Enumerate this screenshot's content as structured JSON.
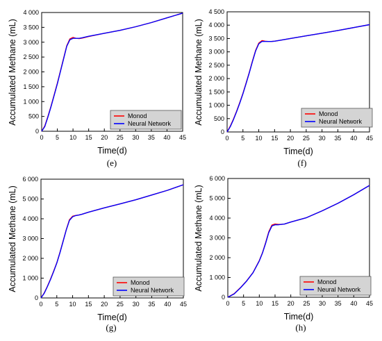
{
  "colors": {
    "monod": "#ff0000",
    "neural": "#0000ff",
    "legend_bg": "#d4d4d4"
  },
  "chart_data": [
    {
      "type": "line",
      "panel_label": "(e)",
      "xlabel": "Time(d)",
      "ylabel": "Accumulated Methane (mL)",
      "xlim": [
        0,
        45
      ],
      "ylim": [
        0,
        4000
      ],
      "xticks": [
        "0",
        "5",
        "10",
        "15",
        "20",
        "25",
        "30",
        "35",
        "40",
        "45"
      ],
      "yticks": [
        "0",
        "500",
        "1 000",
        "1 500",
        "2 000",
        "2 500",
        "3 000",
        "3 500",
        "4 000"
      ],
      "legend_position": "bottom-right",
      "x": [
        0,
        1,
        2,
        3,
        4,
        5,
        6,
        7,
        8,
        9,
        10,
        11,
        12,
        13,
        15,
        20,
        25,
        30,
        35,
        40,
        45
      ],
      "series": [
        {
          "name": "Monod",
          "values": [
            0,
            180,
            500,
            850,
            1230,
            1620,
            2040,
            2460,
            2880,
            3110,
            3160,
            3130,
            3120,
            3140,
            3190,
            3300,
            3400,
            3520,
            3660,
            3820,
            3980
          ]
        },
        {
          "name": "Neural Network",
          "values": [
            0,
            160,
            480,
            830,
            1210,
            1600,
            2020,
            2440,
            2860,
            3080,
            3130,
            3130,
            3130,
            3150,
            3200,
            3300,
            3400,
            3520,
            3660,
            3820,
            3980
          ]
        }
      ]
    },
    {
      "type": "line",
      "panel_label": "(f)",
      "xlabel": "Time(d)",
      "ylabel": "Accumulated Methane (mL)",
      "xlim": [
        0,
        45
      ],
      "ylim": [
        0,
        4500
      ],
      "xticks": [
        "0",
        "5",
        "10",
        "15",
        "20",
        "25",
        "30",
        "35",
        "40",
        "45"
      ],
      "yticks": [
        "0",
        "500",
        "1 000",
        "1 500",
        "2 000",
        "2 500",
        "3 000",
        "3 500",
        "4 000",
        "4 500"
      ],
      "legend_position": "bottom-right",
      "x": [
        0,
        1,
        2,
        3,
        4,
        5,
        6,
        7,
        8,
        9,
        10,
        11,
        12,
        13,
        14,
        15,
        17,
        20,
        25,
        30,
        35,
        40,
        45
      ],
      "series": [
        {
          "name": "Monod",
          "values": [
            0,
            220,
            480,
            780,
            1100,
            1450,
            1830,
            2230,
            2650,
            3050,
            3330,
            3420,
            3400,
            3390,
            3390,
            3400,
            3440,
            3500,
            3600,
            3700,
            3800,
            3910,
            4020
          ]
        },
        {
          "name": "Neural Network",
          "values": [
            0,
            200,
            460,
            760,
            1080,
            1430,
            1810,
            2210,
            2630,
            3030,
            3300,
            3390,
            3390,
            3390,
            3390,
            3400,
            3440,
            3500,
            3600,
            3700,
            3800,
            3910,
            4020
          ]
        }
      ]
    },
    {
      "type": "line",
      "panel_label": "(g)",
      "xlabel": "Time(d)",
      "ylabel": "Accumulated Methane (mL)",
      "xlim": [
        0,
        45
      ],
      "ylim": [
        0,
        6000
      ],
      "xticks": [
        "0",
        "5",
        "10",
        "15",
        "20",
        "25",
        "30",
        "35",
        "40",
        "45"
      ],
      "yticks": [
        "0",
        "1 000",
        "2 000",
        "3 000",
        "4 000",
        "5 000",
        "6 000"
      ],
      "legend_position": "bottom-right",
      "x": [
        0,
        1,
        2,
        3,
        4,
        5,
        6,
        7,
        8,
        9,
        10,
        11,
        12,
        13,
        15,
        20,
        25,
        30,
        35,
        40,
        45
      ],
      "series": [
        {
          "name": "Monod",
          "values": [
            0,
            250,
            580,
            950,
            1350,
            1780,
            2300,
            2880,
            3450,
            3950,
            4130,
            4170,
            4190,
            4230,
            4330,
            4550,
            4750,
            4960,
            5200,
            5440,
            5720
          ]
        },
        {
          "name": "Neural Network",
          "values": [
            0,
            230,
            560,
            930,
            1330,
            1760,
            2280,
            2860,
            3430,
            3920,
            4100,
            4160,
            4190,
            4230,
            4330,
            4550,
            4750,
            4960,
            5200,
            5440,
            5720
          ]
        }
      ]
    },
    {
      "type": "line",
      "panel_label": "(h)",
      "xlabel": "Time(d)",
      "ylabel": "Accumulated Methane (mL)",
      "xlim": [
        0,
        45
      ],
      "ylim": [
        0,
        6000
      ],
      "xticks": [
        "0",
        "5",
        "10",
        "15",
        "20",
        "25",
        "30",
        "35",
        "40",
        "45"
      ],
      "yticks": [
        "0",
        "1 000",
        "2 000",
        "3 000",
        "4 000",
        "5 000",
        "6 000"
      ],
      "legend_position": "bottom-right",
      "x": [
        0,
        2,
        4,
        6,
        8,
        10,
        11,
        12,
        13,
        14,
        15,
        16,
        17,
        18,
        20,
        25,
        30,
        35,
        40,
        45
      ],
      "series": [
        {
          "name": "Monod",
          "values": [
            0,
            180,
            480,
            830,
            1250,
            1850,
            2250,
            2750,
            3300,
            3650,
            3700,
            3680,
            3680,
            3700,
            3800,
            4020,
            4370,
            4750,
            5180,
            5650
          ]
        },
        {
          "name": "Neural Network",
          "values": [
            0,
            170,
            470,
            820,
            1240,
            1830,
            2230,
            2720,
            3260,
            3600,
            3660,
            3660,
            3680,
            3700,
            3800,
            4020,
            4370,
            4750,
            5180,
            5650
          ]
        }
      ]
    }
  ]
}
